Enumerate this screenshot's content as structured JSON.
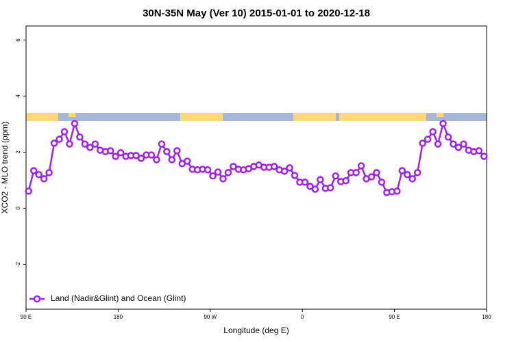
{
  "chart_data": {
    "type": "line",
    "title": "30N-35N May (Ver 10)   2015-01-01 to 2020-12-18",
    "x_label": "Longitude (deg E)",
    "y_label": "XCO2 - MLO trend (ppm)",
    "xlim": [
      90,
      540
    ],
    "ylim": [
      -3.6,
      6.5
    ],
    "xticks": [
      {
        "value": 90,
        "label": "90 E"
      },
      {
        "value": 180,
        "label": "180"
      },
      {
        "value": 270,
        "label": "90 W"
      },
      {
        "value": 360,
        "label": "0"
      },
      {
        "value": 450,
        "label": "90 E"
      },
      {
        "value": 540,
        "label": "180"
      }
    ],
    "yticks": [
      -2,
      0,
      2,
      4,
      6
    ],
    "legend": "bottom-left",
    "x": [
      92.5,
      97.5,
      102.5,
      107.5,
      112.5,
      117.5,
      122.5,
      127.5,
      132.5,
      137.5,
      142.5,
      147.5,
      152.5,
      157.5,
      162.5,
      167.5,
      172.5,
      177.5,
      182.5,
      187.5,
      192.5,
      197.5,
      202.5,
      207.5,
      212.5,
      217.5,
      222.5,
      227.5,
      232.5,
      237.5,
      242.5,
      247.5,
      252.5,
      257.5,
      262.5,
      267.5,
      272.5,
      277.5,
      282.5,
      287.5,
      292.5,
      297.5,
      302.5,
      307.5,
      312.5,
      317.5,
      322.5,
      327.5,
      332.5,
      337.5,
      342.5,
      347.5,
      352.5,
      357.5,
      362.5,
      367.5,
      372.5,
      377.5,
      382.5,
      387.5,
      392.5,
      397.5,
      402.5,
      407.5,
      412.5,
      417.5,
      422.5,
      427.5,
      432.5,
      437.5,
      442.5,
      447.5,
      452.5,
      457.5,
      462.5,
      467.5,
      472.5,
      477.5,
      482.5,
      487.5,
      492.5,
      497.5,
      502.5,
      507.5,
      512.5,
      517.5,
      522.5,
      527.5,
      532.5,
      537.5
    ],
    "series": [
      {
        "name": "Land (Nadir&Glint) and Ocean (Glint)",
        "color": "#a020f0",
        "values": [
          0.61,
          1.34,
          1.2,
          1.05,
          1.27,
          2.32,
          2.46,
          2.73,
          2.29,
          3.02,
          2.54,
          2.29,
          2.17,
          2.29,
          2.07,
          2.02,
          2.05,
          1.85,
          1.98,
          1.85,
          1.88,
          1.88,
          1.78,
          1.9,
          1.9,
          1.73,
          2.29,
          2.02,
          1.73,
          2.05,
          1.59,
          1.68,
          1.39,
          1.37,
          1.39,
          1.37,
          1.15,
          1.29,
          1.05,
          1.27,
          1.49,
          1.39,
          1.37,
          1.41,
          1.49,
          1.54,
          1.46,
          1.46,
          1.49,
          1.37,
          1.32,
          1.44,
          1.17,
          0.93,
          0.93,
          0.78,
          0.68,
          1.02,
          0.71,
          0.73,
          1.15,
          0.95,
          0.98,
          1.27,
          1.27,
          1.51,
          1.05,
          1.12,
          1.27,
          0.93,
          0.56,
          0.59,
          0.61,
          1.34,
          1.2,
          1.05,
          1.27,
          2.32,
          2.46,
          2.73,
          2.29,
          3.02,
          2.54,
          2.29,
          2.17,
          2.29,
          2.07,
          2.02,
          2.05,
          1.85
        ]
      }
    ]
  }
}
